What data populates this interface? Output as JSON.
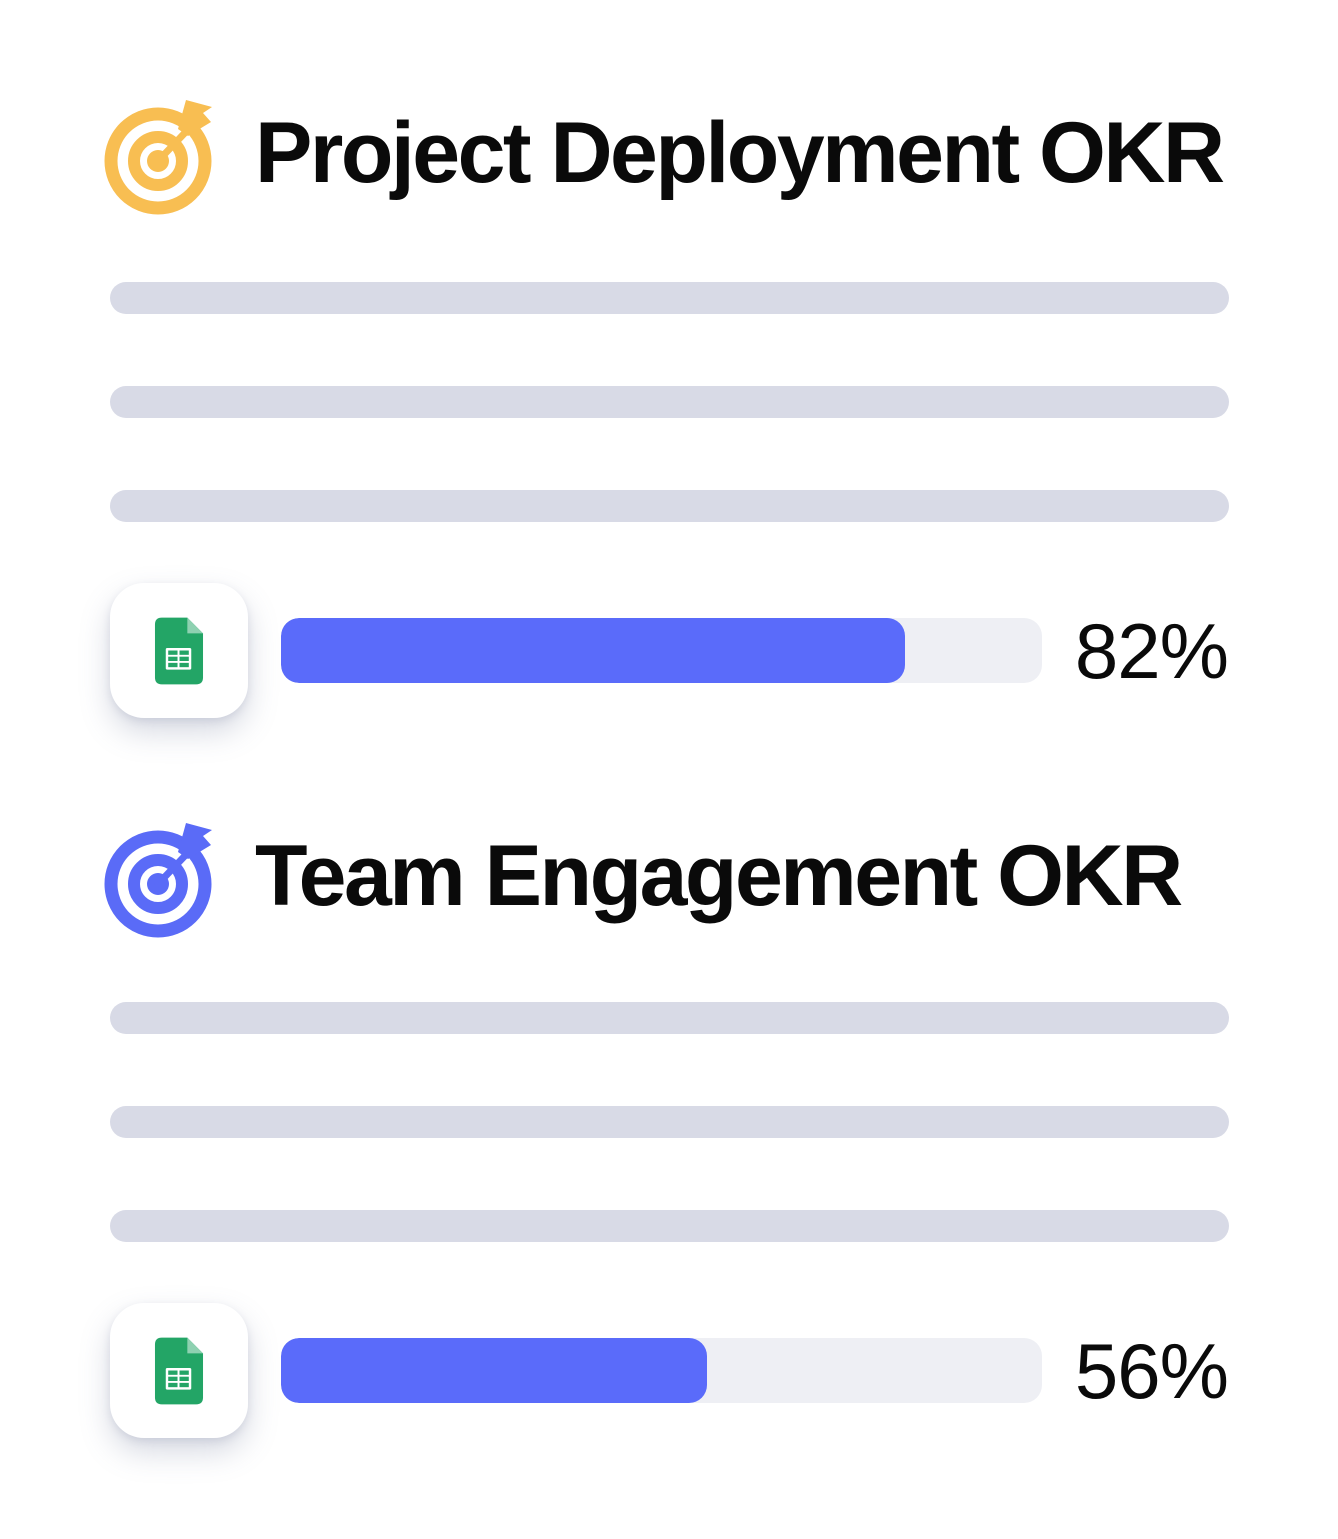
{
  "page": {
    "background": "#FFFFFF",
    "text_color": "#0A0A0A"
  },
  "colors": {
    "skeleton": "#D8DAE6",
    "progress_track": "#EEEFF4",
    "progress_fill": "#5A6BFA",
    "sheets_green": "#23A566",
    "sheets_fold": "#8ED1B1",
    "sheets_grid": "#FFFFFF"
  },
  "sections": [
    {
      "title": "Project Deployment OKR",
      "icon": "target-icon",
      "icon_color": "#F8BE52",
      "progress": {
        "source_icon": "google-sheets-icon",
        "percent": 82,
        "label": "82%"
      }
    },
    {
      "title": "Team Engagement OKR",
      "icon": "target-icon",
      "icon_color": "#5A6BF7",
      "progress": {
        "source_icon": "google-sheets-icon",
        "percent": 56,
        "label": "56%"
      }
    }
  ]
}
